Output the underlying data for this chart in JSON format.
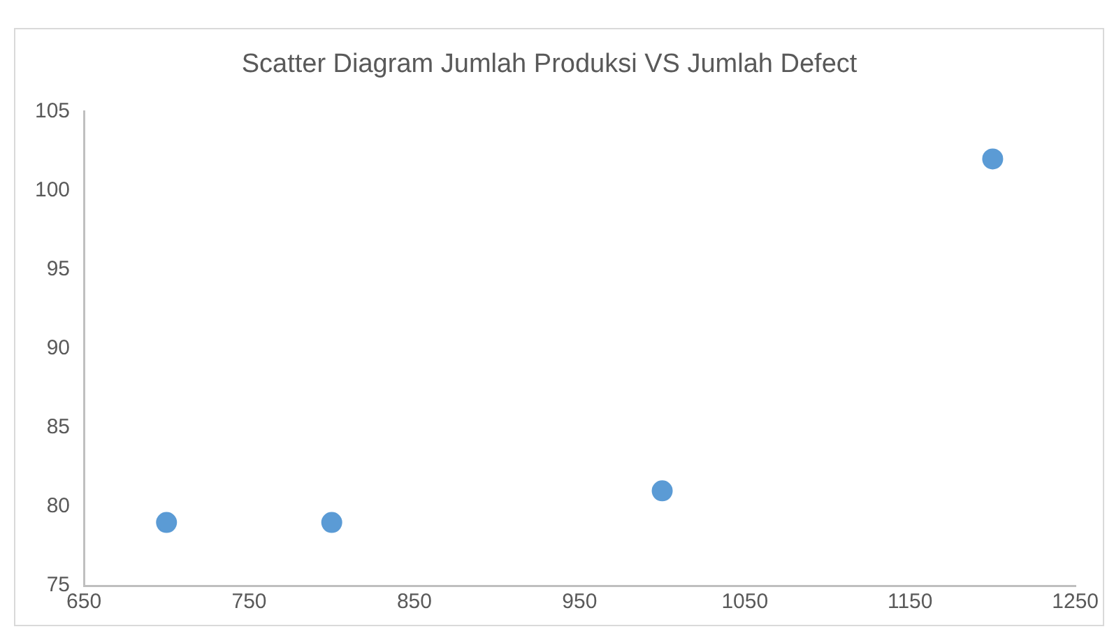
{
  "chart_data": {
    "type": "scatter",
    "title": "Scatter Diagram Jumlah Produksi VS Jumlah Defect",
    "x": [
      700,
      800,
      1000,
      1200
    ],
    "values": [
      79,
      79,
      81,
      102
    ],
    "color": "#5b9bd5",
    "xlim": [
      650,
      1250
    ],
    "xticks": [
      650,
      750,
      850,
      950,
      1050,
      1150,
      1250
    ],
    "ylim": [
      75,
      105
    ],
    "yticks": [
      75,
      80,
      85,
      90,
      95,
      100,
      105
    ],
    "grid": false,
    "legend": false,
    "marker": "circle"
  }
}
